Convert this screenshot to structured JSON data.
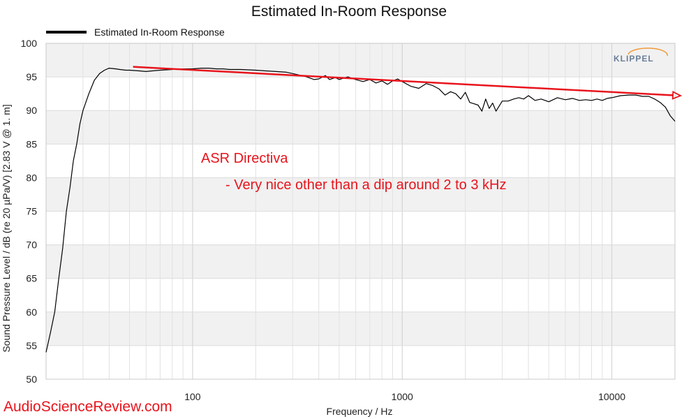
{
  "chart_data": {
    "type": "line",
    "title": "Estimated In-Room Response",
    "xlabel": "Frequency / Hz",
    "ylabel": "Sound Pressure Level / dB (re 20 µPa/V)  [2.83  V @ 1. m]",
    "xscale": "log",
    "xlim": [
      20,
      20000
    ],
    "ylim": [
      50,
      100
    ],
    "xticks": [
      100,
      1000,
      10000
    ],
    "xtick_labels": [
      "100",
      "1000",
      "10000"
    ],
    "yticks": [
      50,
      55,
      60,
      65,
      70,
      75,
      80,
      85,
      90,
      95,
      100
    ],
    "ytick_labels": [
      "50",
      "55",
      "60",
      "65",
      "70",
      "75",
      "80",
      "85",
      "90",
      "95",
      "100"
    ],
    "grid": true,
    "legend": {
      "placement": "top-left",
      "entries": [
        "Estimated In-Room Response"
      ]
    },
    "series": [
      {
        "name": "Estimated In-Room Response",
        "color": "#000000",
        "x": [
          20,
          21,
          22,
          23,
          24,
          25,
          26,
          27,
          28,
          29,
          30,
          32,
          34,
          36,
          38,
          40,
          43,
          45,
          48,
          50,
          55,
          60,
          65,
          70,
          80,
          90,
          100,
          110,
          120,
          130,
          140,
          150,
          170,
          200,
          220,
          250,
          280,
          300,
          320,
          350,
          380,
          400,
          430,
          450,
          480,
          500,
          550,
          600,
          650,
          700,
          750,
          800,
          850,
          900,
          950,
          1000,
          1100,
          1200,
          1300,
          1400,
          1500,
          1600,
          1700,
          1800,
          1900,
          2000,
          2100,
          2200,
          2300,
          2400,
          2500,
          2600,
          2700,
          2800,
          3000,
          3200,
          3400,
          3600,
          3800,
          4000,
          4300,
          4600,
          5000,
          5500,
          6000,
          6500,
          7000,
          7500,
          8000,
          8500,
          9000,
          9500,
          10000,
          11000,
          12000,
          13000,
          14000,
          15000,
          16000,
          17000,
          18000,
          19000,
          20000
        ],
        "y": [
          54,
          57,
          60,
          65,
          69.5,
          75,
          78.5,
          82.5,
          85,
          88,
          90,
          92.5,
          94.5,
          95.5,
          96,
          96.3,
          96.2,
          96.1,
          96,
          96,
          95.9,
          95.8,
          95.9,
          96,
          96.1,
          96.2,
          96.2,
          96.3,
          96.3,
          96.2,
          96.2,
          96.1,
          96.1,
          96,
          95.9,
          95.8,
          95.7,
          95.5,
          95.3,
          95,
          94.6,
          94.7,
          95.2,
          94.6,
          94.9,
          94.6,
          95,
          94.6,
          94.3,
          94.6,
          94.1,
          94.4,
          93.9,
          94.4,
          94.7,
          94.3,
          93.6,
          93.3,
          94,
          93.7,
          93.2,
          92.3,
          92.8,
          92.5,
          91.7,
          92.7,
          91.2,
          91,
          90.8,
          89.9,
          91.7,
          90.3,
          91.1,
          89.9,
          91.4,
          91.4,
          91.7,
          91.9,
          91.7,
          92.2,
          91.5,
          91.7,
          91.3,
          91.9,
          91.6,
          91.8,
          91.5,
          91.6,
          91.5,
          91.7,
          91.5,
          91.8,
          91.9,
          92.2,
          92.3,
          92.3,
          92.1,
          92.1,
          91.7,
          91.2,
          90.5,
          89.2,
          88.4
        ]
      },
      {
        "name": "",
        "color": "#e8141c",
        "kind": "arrow",
        "x": [
          52,
          22000
        ],
        "y": [
          96.5,
          92.2
        ]
      }
    ],
    "annotations": [
      "ASR Directiva",
      "- Very nice other than a dip around 2 to 3 kHz"
    ]
  },
  "watermark": "AudioScienceReview.com",
  "brand": "KLIPPEL"
}
